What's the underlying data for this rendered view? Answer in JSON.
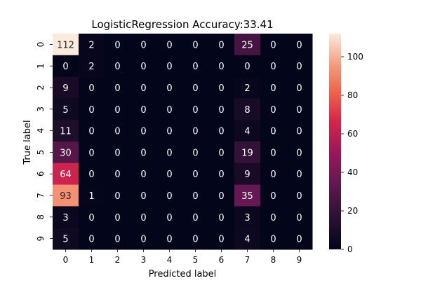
{
  "chart_data": {
    "type": "heatmap",
    "title": "LogisticRegression Accuracy:33.41",
    "xlabel": "Predicted label",
    "ylabel": "True label",
    "x_categories": [
      "0",
      "1",
      "2",
      "3",
      "4",
      "5",
      "6",
      "7",
      "8",
      "9"
    ],
    "y_categories": [
      "0",
      "1",
      "2",
      "3",
      "4",
      "5",
      "6",
      "7",
      "8",
      "9"
    ],
    "values": [
      [
        112,
        2,
        0,
        0,
        0,
        0,
        0,
        25,
        0,
        0
      ],
      [
        0,
        2,
        0,
        0,
        0,
        0,
        0,
        0,
        0,
        0
      ],
      [
        9,
        0,
        0,
        0,
        0,
        0,
        0,
        2,
        0,
        0
      ],
      [
        5,
        0,
        0,
        0,
        0,
        0,
        0,
        8,
        0,
        0
      ],
      [
        11,
        0,
        0,
        0,
        0,
        0,
        0,
        4,
        0,
        0
      ],
      [
        30,
        0,
        0,
        0,
        0,
        0,
        0,
        19,
        0,
        0
      ],
      [
        64,
        0,
        0,
        0,
        0,
        0,
        0,
        9,
        0,
        0
      ],
      [
        93,
        1,
        0,
        0,
        0,
        0,
        0,
        35,
        0,
        0
      ],
      [
        3,
        0,
        0,
        0,
        0,
        0,
        0,
        3,
        0,
        0
      ],
      [
        5,
        0,
        0,
        0,
        0,
        0,
        0,
        4,
        0,
        0
      ]
    ],
    "colorbar": {
      "min": 0,
      "max": 112,
      "ticks": [
        0,
        20,
        40,
        60,
        80,
        100
      ],
      "colormap": "rocket"
    },
    "annotations": true,
    "grid": false
  }
}
